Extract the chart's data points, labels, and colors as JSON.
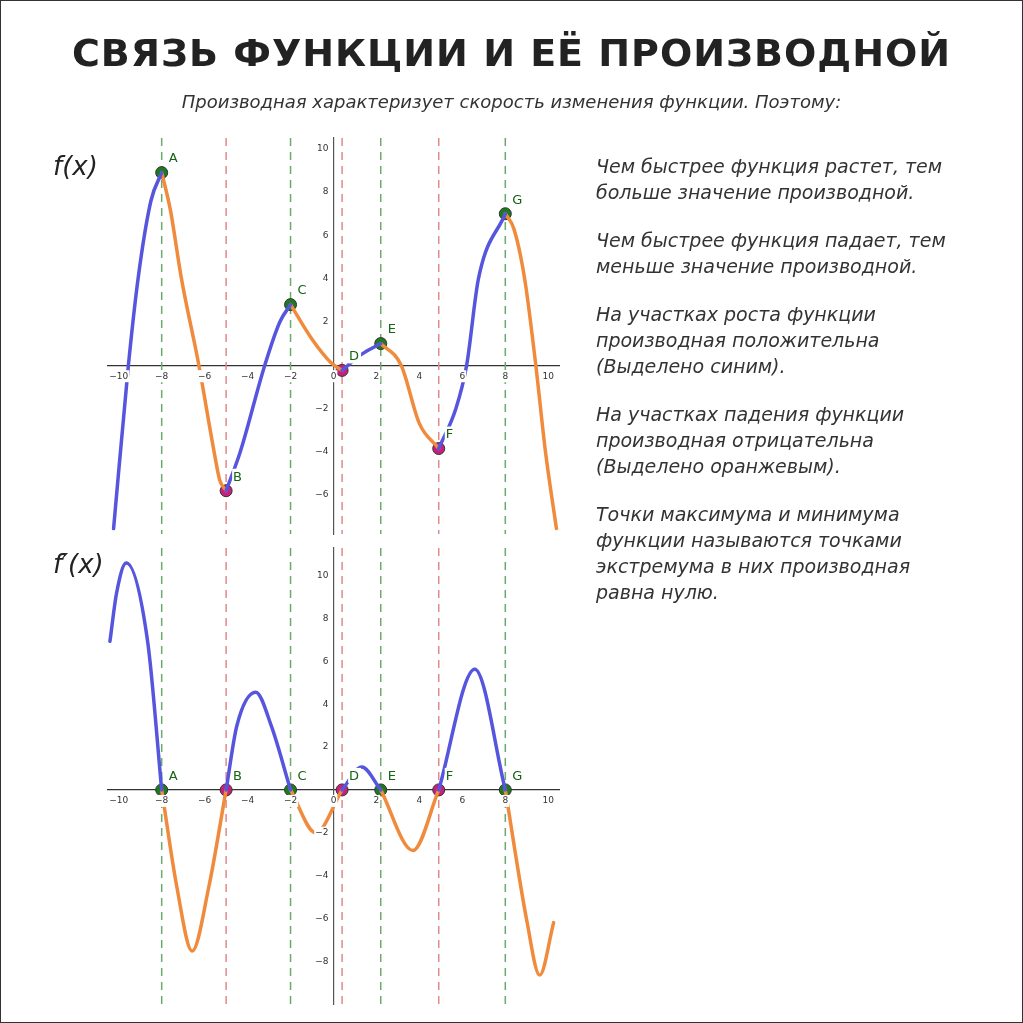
{
  "chart_data": [
    {
      "type": "line",
      "title": "СВЯЗЬ ФУНКЦИИ И ЕЁ ПРОИЗВОДНОЙ",
      "subtitle": "Производная характеризует скорость изменения функции. Поэтому:",
      "ylabel": "f(x)",
      "xlim": [
        -10.5,
        10.5
      ],
      "xticks": [
        -10,
        -8,
        -6,
        -4,
        -2,
        0,
        2,
        4,
        6,
        8,
        10
      ],
      "ylim": [
        -7.8,
        10.5
      ],
      "yticks": [
        -6,
        -4,
        -2,
        2,
        4,
        6,
        8,
        10
      ],
      "grid": false,
      "legend": false,
      "series": [
        {
          "type": "line",
          "color": "#5555dd",
          "marker": "none",
          "x": [
            -10.24,
            -9.55,
            -9.1,
            -8.5,
            -8,
            -6.5,
            -5,
            -4.34,
            -3.2,
            -2.5,
            -2,
            -1,
            0.4,
            1.3,
            2.2,
            3.5,
            4.9,
            5.7,
            6.2,
            6.75,
            8
          ],
          "values": [
            -7.55,
            0,
            4,
            7.6,
            8.9,
            null,
            -5.8,
            -4,
            0,
            2,
            2.8,
            null,
            -0.24,
            0.5,
            1.0,
            null,
            -3.85,
            -2,
            0,
            4,
            7
          ]
        },
        {
          "type": "line",
          "color": "#f08a3c",
          "marker": "none",
          "x": [
            -8,
            -7.6,
            -7.08,
            -6.27,
            -5.56,
            -5.3,
            -5,
            -3.5,
            -2,
            -1,
            -0.1,
            0.4,
            1.3,
            2.2,
            3.15,
            4,
            4.9,
            6.5,
            8,
            8.4,
            8.9,
            9.42,
            9.87,
            10.38
          ],
          "values": [
            8.9,
            7.2,
            4,
            0,
            -4,
            -5.3,
            -5.8,
            null,
            2.8,
            1.2,
            0.1,
            -0.24,
            null,
            1.0,
            0,
            -2.7,
            -3.85,
            null,
            7,
            6.3,
            4,
            0,
            -4,
            -7.55
          ]
        },
        {
          "type": "scatter",
          "marker": "circle",
          "x": [
            -8,
            -5,
            -2,
            0.4,
            2.2,
            4.9,
            8
          ],
          "values": [
            8.9,
            -5.8,
            2.8,
            -0.24,
            1.0,
            -3.85,
            7
          ],
          "colors": [
            "#1f7a1f",
            "#c8207a",
            "#1f7a1f",
            "#c8207a",
            "#1f7a1f",
            "#c8207a",
            "#1f7a1f"
          ]
        }
      ],
      "ref_lines": [
        {
          "axis": "x",
          "value": -8,
          "color": "#6aaa6a",
          "line_style": "dashed"
        },
        {
          "axis": "x",
          "value": -5,
          "color": "#e08a8a",
          "line_style": "dashed"
        },
        {
          "axis": "x",
          "value": -2,
          "color": "#6aaa6a",
          "line_style": "dashed"
        },
        {
          "axis": "x",
          "value": 0.4,
          "color": "#e08a8a",
          "line_style": "dashed"
        },
        {
          "axis": "x",
          "value": 2.2,
          "color": "#6aaa6a",
          "line_style": "dashed"
        },
        {
          "axis": "x",
          "value": 4.9,
          "color": "#e08a8a",
          "line_style": "dashed"
        },
        {
          "axis": "x",
          "value": 8,
          "color": "#6aaa6a",
          "line_style": "dashed"
        }
      ],
      "annotations": [
        {
          "text": "A",
          "x": -8,
          "y": 8.9
        },
        {
          "text": "B",
          "x": -5,
          "y": -5.8
        },
        {
          "text": "C",
          "x": -2,
          "y": 2.8
        },
        {
          "text": "D",
          "x": 0.4,
          "y": -0.24
        },
        {
          "text": "E",
          "x": 2.2,
          "y": 1.0
        },
        {
          "text": "F",
          "x": 4.9,
          "y": -3.85
        },
        {
          "text": "G",
          "x": 8,
          "y": 7
        },
        "Чем быстрее функция растет, тем больше значение производной.",
        "Чем быстрее функция падает, тем меньше значение производной.",
        "На участках роста функции производная положительна (Выделено синим).",
        "На участках падения функции производная отрицательна (Выделено оранжевым).",
        "Точки максимума и минимума функции называются точками экстремума в них производная равна нулю."
      ]
    },
    {
      "type": "line",
      "ylabel": "f′(x)",
      "xlim": [
        -10.5,
        10.5
      ],
      "xticks": [
        -10,
        -8,
        -6,
        -4,
        -2,
        0,
        2,
        4,
        6,
        8,
        10
      ],
      "ylim": [
        -10,
        11.3
      ],
      "yticks": [
        -8,
        -6,
        -4,
        -2,
        2,
        4,
        6,
        8,
        10
      ],
      "grid": false,
      "legend": false,
      "series": [
        {
          "type": "line",
          "color": "#5555dd",
          "marker": "none",
          "x": [
            -10.41,
            -10.1,
            -9.65,
            -8.65,
            -8,
            -6.5,
            -5,
            -4.5,
            -3.62,
            -2.9,
            -2,
            -0.8,
            0.4,
            1.32,
            2.2,
            3.7,
            4.9,
            6.58,
            8
          ],
          "values": [
            6.94,
            9.2,
            10.6,
            6.9,
            0,
            null,
            0,
            3.0,
            4.56,
            3.0,
            0,
            null,
            0,
            1.07,
            0,
            null,
            0,
            5.64,
            0
          ]
        },
        {
          "type": "line",
          "color": "#f08a3c",
          "marker": "none",
          "x": [
            -8,
            -7.3,
            -6.58,
            -5.8,
            -5,
            -3.5,
            -2,
            -0.83,
            0.4,
            1.3,
            2.2,
            3.7,
            4.9,
            6.5,
            8,
            9.0,
            9.6,
            10.25
          ],
          "values": [
            0,
            -4.5,
            -7.53,
            -4.5,
            0,
            null,
            0,
            -2.0,
            0,
            null,
            0,
            -2.83,
            0,
            null,
            0,
            -6.1,
            -8.65,
            -6.2
          ]
        },
        {
          "type": "scatter",
          "marker": "circle",
          "x": [
            -8,
            -5,
            -2,
            0.4,
            2.2,
            4.9,
            8
          ],
          "values": [
            0,
            0,
            0,
            0,
            0,
            0,
            0
          ],
          "colors": [
            "#1f7a1f",
            "#c8207a",
            "#1f7a1f",
            "#c8207a",
            "#1f7a1f",
            "#c8207a",
            "#1f7a1f"
          ]
        }
      ],
      "ref_lines": [
        {
          "axis": "x",
          "value": -8,
          "color": "#6aaa6a",
          "line_style": "dashed"
        },
        {
          "axis": "x",
          "value": -5,
          "color": "#e08a8a",
          "line_style": "dashed"
        },
        {
          "axis": "x",
          "value": -2,
          "color": "#6aaa6a",
          "line_style": "dashed"
        },
        {
          "axis": "x",
          "value": 0.4,
          "color": "#e08a8a",
          "line_style": "dashed"
        },
        {
          "axis": "x",
          "value": 2.2,
          "color": "#6aaa6a",
          "line_style": "dashed"
        },
        {
          "axis": "x",
          "value": 4.9,
          "color": "#e08a8a",
          "line_style": "dashed"
        },
        {
          "axis": "x",
          "value": 8,
          "color": "#6aaa6a",
          "line_style": "dashed"
        }
      ],
      "annotations": [
        {
          "text": "A",
          "x": -8,
          "y": 0
        },
        {
          "text": "B",
          "x": -5,
          "y": 0
        },
        {
          "text": "C",
          "x": -2,
          "y": 0
        },
        {
          "text": "D",
          "x": 0.4,
          "y": 0
        },
        {
          "text": "E",
          "x": 2.2,
          "y": 0
        },
        {
          "text": "F",
          "x": 4.9,
          "y": 0
        },
        {
          "text": "G",
          "x": 8,
          "y": 0
        }
      ]
    }
  ]
}
